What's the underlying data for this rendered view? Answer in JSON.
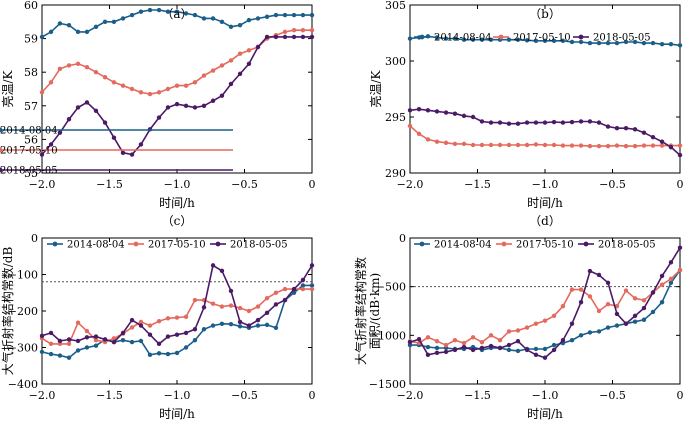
{
  "chart_data": [
    {
      "type": "line",
      "panel_label": "（a）",
      "xlabel": "时间/h",
      "ylabel": "亮温/K",
      "xlim": [
        -2.0,
        0
      ],
      "ylim": [
        55,
        60
      ],
      "x_ticks": [
        -2.0,
        -1.5,
        -1.0,
        -0.5,
        0
      ],
      "x_tick_labels": [
        "−2.0",
        "−1.5",
        "−1.0",
        "−0.5",
        "0"
      ],
      "y_ticks": [
        55,
        56,
        57,
        58,
        59,
        60
      ],
      "y_tick_labels": [
        "55",
        "56",
        "57",
        "58",
        "59",
        "60"
      ],
      "legend_position": "lower-right",
      "reference_line": null,
      "series": [
        {
          "name": "2014-08-04",
          "color": "#1a5e8a",
          "x": [
            -2.0,
            -1.933,
            -1.867,
            -1.8,
            -1.733,
            -1.667,
            -1.6,
            -1.533,
            -1.467,
            -1.4,
            -1.333,
            -1.267,
            -1.2,
            -1.133,
            -1.067,
            -1.0,
            -0.933,
            -0.867,
            -0.8,
            -0.733,
            -0.667,
            -0.6,
            -0.533,
            -0.467,
            -0.4,
            -0.333,
            -0.267,
            -0.2,
            -0.133,
            -0.067,
            0.0
          ],
          "y": [
            59.05,
            59.2,
            59.45,
            59.4,
            59.2,
            59.2,
            59.35,
            59.5,
            59.5,
            59.6,
            59.7,
            59.8,
            59.85,
            59.85,
            59.8,
            59.8,
            59.75,
            59.7,
            59.6,
            59.6,
            59.5,
            59.35,
            59.4,
            59.55,
            59.6,
            59.65,
            59.7,
            59.7,
            59.7,
            59.7,
            59.7
          ]
        },
        {
          "name": "2017-05-10",
          "color": "#e46a5e",
          "x": [
            -2.0,
            -1.933,
            -1.867,
            -1.8,
            -1.733,
            -1.667,
            -1.6,
            -1.533,
            -1.467,
            -1.4,
            -1.333,
            -1.267,
            -1.2,
            -1.133,
            -1.067,
            -1.0,
            -0.933,
            -0.867,
            -0.8,
            -0.733,
            -0.667,
            -0.6,
            -0.533,
            -0.467,
            -0.4,
            -0.333,
            -0.267,
            -0.2,
            -0.133,
            -0.067,
            0.0
          ],
          "y": [
            57.4,
            57.7,
            58.1,
            58.2,
            58.25,
            58.15,
            58.0,
            57.85,
            57.7,
            57.6,
            57.5,
            57.4,
            57.35,
            57.4,
            57.5,
            57.6,
            57.6,
            57.7,
            57.9,
            58.05,
            58.2,
            58.35,
            58.55,
            58.65,
            58.75,
            59.0,
            59.1,
            59.2,
            59.25,
            59.25,
            59.25
          ]
        },
        {
          "name": "2018-05-05",
          "color": "#4b1a66",
          "x": [
            -2.0,
            -1.933,
            -1.867,
            -1.8,
            -1.733,
            -1.667,
            -1.6,
            -1.533,
            -1.467,
            -1.4,
            -1.333,
            -1.267,
            -1.2,
            -1.133,
            -1.067,
            -1.0,
            -0.933,
            -0.867,
            -0.8,
            -0.733,
            -0.667,
            -0.6,
            -0.533,
            -0.467,
            -0.4,
            -0.333,
            -0.267,
            -0.2,
            -0.133,
            -0.067,
            0.0
          ],
          "y": [
            55.55,
            55.85,
            56.2,
            56.6,
            56.95,
            57.1,
            56.85,
            56.5,
            56.05,
            55.6,
            55.55,
            55.85,
            56.3,
            56.65,
            56.95,
            57.05,
            57.0,
            56.95,
            57.0,
            57.15,
            57.3,
            57.65,
            57.95,
            58.25,
            58.75,
            59.05,
            59.05,
            59.05,
            59.05,
            59.05,
            59.05
          ]
        }
      ]
    },
    {
      "type": "line",
      "panel_label": "（b）",
      "xlabel": "时间/h",
      "ylabel": "亮温/K",
      "xlim": [
        -2.0,
        0
      ],
      "ylim": [
        290,
        305
      ],
      "x_ticks": [
        -2.0,
        -1.5,
        -1.0,
        -0.5,
        0
      ],
      "x_tick_labels": [
        "−2.0",
        "−1.5",
        "−1.0",
        "−0.5",
        "0"
      ],
      "y_ticks": [
        290,
        295,
        300,
        305
      ],
      "y_tick_labels": [
        "290",
        "295",
        "300",
        "305"
      ],
      "legend_position": "top",
      "reference_line": null,
      "series": [
        {
          "name": "2014-08-04",
          "color": "#1a5e8a",
          "x": [
            -2.0,
            -1.933,
            -1.867,
            -1.8,
            -1.733,
            -1.667,
            -1.6,
            -1.533,
            -1.467,
            -1.4,
            -1.333,
            -1.267,
            -1.2,
            -1.133,
            -1.067,
            -1.0,
            -0.933,
            -0.867,
            -0.8,
            -0.733,
            -0.667,
            -0.6,
            -0.533,
            -0.467,
            -0.4,
            -0.333,
            -0.267,
            -0.2,
            -0.133,
            -0.067,
            0.0
          ],
          "y": [
            302.0,
            302.1,
            302.2,
            302.1,
            302.0,
            302.0,
            301.9,
            301.9,
            301.9,
            301.9,
            301.9,
            301.9,
            301.9,
            301.85,
            301.8,
            301.8,
            301.8,
            301.8,
            301.7,
            301.7,
            301.6,
            301.6,
            301.6,
            301.6,
            301.7,
            301.7,
            301.6,
            301.6,
            301.5,
            301.5,
            301.4
          ]
        },
        {
          "name": "2017-05-10",
          "color": "#e46a5e",
          "x": [
            -2.0,
            -1.933,
            -1.867,
            -1.8,
            -1.733,
            -1.667,
            -1.6,
            -1.533,
            -1.467,
            -1.4,
            -1.333,
            -1.267,
            -1.2,
            -1.133,
            -1.067,
            -1.0,
            -0.933,
            -0.867,
            -0.8,
            -0.733,
            -0.667,
            -0.6,
            -0.533,
            -0.467,
            -0.4,
            -0.333,
            -0.267,
            -0.2,
            -0.133,
            -0.067,
            0.0
          ],
          "y": [
            294.2,
            293.5,
            293.0,
            292.8,
            292.7,
            292.6,
            292.6,
            292.5,
            292.5,
            292.5,
            292.5,
            292.5,
            292.5,
            292.5,
            292.55,
            292.5,
            292.5,
            292.45,
            292.45,
            292.45,
            292.4,
            292.4,
            292.4,
            292.45,
            292.4,
            292.4,
            292.45,
            292.45,
            292.45,
            292.45,
            292.45
          ]
        },
        {
          "name": "2018-05-05",
          "color": "#4b1a66",
          "x": [
            -2.0,
            -1.933,
            -1.867,
            -1.8,
            -1.733,
            -1.667,
            -1.6,
            -1.533,
            -1.467,
            -1.4,
            -1.333,
            -1.267,
            -1.2,
            -1.133,
            -1.067,
            -1.0,
            -0.933,
            -0.867,
            -0.8,
            -0.733,
            -0.667,
            -0.6,
            -0.533,
            -0.467,
            -0.4,
            -0.333,
            -0.267,
            -0.2,
            -0.133,
            -0.067,
            0.0
          ],
          "y": [
            295.6,
            295.7,
            295.6,
            295.5,
            295.4,
            295.3,
            295.1,
            295.0,
            294.6,
            294.5,
            294.5,
            294.4,
            294.4,
            294.5,
            294.5,
            294.5,
            294.55,
            294.5,
            294.55,
            294.6,
            294.6,
            294.5,
            294.15,
            294.0,
            294.0,
            293.9,
            293.6,
            293.2,
            292.8,
            292.3,
            291.6
          ]
        }
      ]
    },
    {
      "type": "line",
      "panel_label": "（c）",
      "xlabel": "时间/h",
      "ylabel": "大气折射率结构常数/dB",
      "xlim": [
        -2.0,
        0
      ],
      "ylim": [
        -400,
        0
      ],
      "x_ticks": [
        -2.0,
        -1.5,
        -1.0,
        -0.5,
        0
      ],
      "x_tick_labels": [
        "−2.0",
        "−1.5",
        "−1.0",
        "−0.5",
        "0"
      ],
      "y_ticks": [
        -400,
        -300,
        -200,
        -100,
        0
      ],
      "y_tick_labels": [
        "−400",
        "−300",
        "−200",
        "−100",
        "0"
      ],
      "legend_position": "top",
      "reference_line": -120,
      "series": [
        {
          "name": "2014-08-04",
          "color": "#1a5e8a",
          "x": [
            -2.0,
            -1.933,
            -1.867,
            -1.8,
            -1.733,
            -1.667,
            -1.6,
            -1.533,
            -1.467,
            -1.4,
            -1.333,
            -1.267,
            -1.2,
            -1.133,
            -1.067,
            -1.0,
            -0.933,
            -0.867,
            -0.8,
            -0.733,
            -0.667,
            -0.6,
            -0.533,
            -0.467,
            -0.4,
            -0.333,
            -0.267,
            -0.2,
            -0.133,
            -0.067,
            0.0
          ],
          "y": [
            -312,
            -318,
            -322,
            -328,
            -308,
            -300,
            -295,
            -278,
            -285,
            -280,
            -285,
            -282,
            -320,
            -316,
            -318,
            -315,
            -300,
            -280,
            -250,
            -240,
            -235,
            -236,
            -242,
            -246,
            -240,
            -238,
            -246,
            -170,
            -150,
            -130,
            -130
          ]
        },
        {
          "name": "2017-05-10",
          "color": "#e46a5e",
          "x": [
            -2.0,
            -1.933,
            -1.867,
            -1.8,
            -1.733,
            -1.667,
            -1.6,
            -1.533,
            -1.467,
            -1.4,
            -1.333,
            -1.267,
            -1.2,
            -1.133,
            -1.067,
            -1.0,
            -0.933,
            -0.867,
            -0.8,
            -0.733,
            -0.667,
            -0.6,
            -0.533,
            -0.467,
            -0.4,
            -0.333,
            -0.267,
            -0.2,
            -0.133,
            -0.067,
            0.0
          ],
          "y": [
            -275,
            -290,
            -290,
            -290,
            -232,
            -255,
            -280,
            -285,
            -275,
            -262,
            -245,
            -230,
            -240,
            -228,
            -220,
            -218,
            -216,
            -170,
            -170,
            -180,
            -188,
            -185,
            -192,
            -200,
            -188,
            -165,
            -150,
            -140,
            -140,
            -140,
            -140
          ]
        },
        {
          "name": "2018-05-05",
          "color": "#4b1a66",
          "x": [
            -2.0,
            -1.933,
            -1.867,
            -1.8,
            -1.733,
            -1.667,
            -1.6,
            -1.533,
            -1.467,
            -1.4,
            -1.333,
            -1.267,
            -1.2,
            -1.133,
            -1.067,
            -1.0,
            -0.933,
            -0.867,
            -0.8,
            -0.733,
            -0.667,
            -0.6,
            -0.533,
            -0.467,
            -0.4,
            -0.333,
            -0.267,
            -0.2,
            -0.133,
            -0.067,
            0.0
          ],
          "y": [
            -268,
            -260,
            -282,
            -278,
            -282,
            -272,
            -270,
            -278,
            -285,
            -260,
            -225,
            -240,
            -265,
            -290,
            -270,
            -265,
            -260,
            -250,
            -190,
            -75,
            -90,
            -145,
            -230,
            -240,
            -225,
            -205,
            -182,
            -170,
            -140,
            -115,
            -75
          ]
        }
      ]
    },
    {
      "type": "line",
      "panel_label": "（d）",
      "xlabel": "时间/h",
      "ylabel_line1": "大气折射率结构常数",
      "ylabel_line2": "面积/(dB·km)",
      "xlim": [
        -2.0,
        0
      ],
      "ylim": [
        -1500,
        0
      ],
      "x_ticks": [
        -2.0,
        -1.5,
        -1.0,
        -0.5,
        0
      ],
      "x_tick_labels": [
        "−2.0",
        "−1.5",
        "−1.0",
        "−0.5",
        "0"
      ],
      "y_ticks": [
        -1500,
        -1000,
        -500,
        0
      ],
      "y_tick_labels": [
        "−1500",
        "−1000",
        "−500",
        "0"
      ],
      "legend_position": "top",
      "reference_line": -500,
      "series": [
        {
          "name": "2014-08-04",
          "color": "#1a5e8a",
          "x": [
            -2.0,
            -1.933,
            -1.867,
            -1.8,
            -1.733,
            -1.667,
            -1.6,
            -1.533,
            -1.467,
            -1.4,
            -1.333,
            -1.267,
            -1.2,
            -1.133,
            -1.067,
            -1.0,
            -0.933,
            -0.867,
            -0.8,
            -0.733,
            -0.667,
            -0.6,
            -0.533,
            -0.467,
            -0.4,
            -0.333,
            -0.267,
            -0.2,
            -0.133,
            -0.067,
            0.0
          ],
          "y": [
            -1100,
            -1100,
            -1120,
            -1130,
            -1130,
            -1140,
            -1140,
            -1120,
            -1150,
            -1130,
            -1130,
            -1150,
            -1160,
            -1140,
            -1140,
            -1140,
            -1100,
            -1080,
            -1050,
            -1000,
            -970,
            -960,
            -920,
            -900,
            -880,
            -860,
            -840,
            -760,
            -660,
            -460,
            -330
          ]
        },
        {
          "name": "2017-05-10",
          "color": "#e46a5e",
          "x": [
            -2.0,
            -1.933,
            -1.867,
            -1.8,
            -1.733,
            -1.667,
            -1.6,
            -1.533,
            -1.467,
            -1.4,
            -1.333,
            -1.267,
            -1.2,
            -1.133,
            -1.067,
            -1.0,
            -0.933,
            -0.867,
            -0.8,
            -0.733,
            -0.667,
            -0.6,
            -0.533,
            -0.467,
            -0.4,
            -0.333,
            -0.267,
            -0.2,
            -0.133,
            -0.067,
            0.0
          ],
          "y": [
            -1060,
            -1080,
            -1020,
            -1060,
            -1100,
            -1050,
            -1080,
            -1020,
            -1070,
            -1000,
            -1050,
            -960,
            -950,
            -920,
            -880,
            -850,
            -800,
            -700,
            -530,
            -530,
            -600,
            -750,
            -680,
            -700,
            -540,
            -620,
            -640,
            -560,
            -480,
            -420,
            -330
          ]
        },
        {
          "name": "2018-05-05",
          "color": "#4b1a66",
          "x": [
            -2.0,
            -1.933,
            -1.867,
            -1.8,
            -1.733,
            -1.667,
            -1.6,
            -1.533,
            -1.467,
            -1.4,
            -1.333,
            -1.267,
            -1.2,
            -1.133,
            -1.067,
            -1.0,
            -0.933,
            -0.867,
            -0.8,
            -0.733,
            -0.667,
            -0.6,
            -0.533,
            -0.467,
            -0.4,
            -0.333,
            -0.267,
            -0.2,
            -0.133,
            -0.067,
            0.0
          ],
          "y": [
            -1070,
            -1040,
            -1200,
            -1180,
            -1170,
            -1150,
            -1120,
            -1150,
            -1130,
            -1110,
            -1130,
            -1100,
            -1060,
            -1150,
            -1200,
            -1230,
            -1150,
            -1050,
            -880,
            -660,
            -340,
            -380,
            -460,
            -780,
            -880,
            -800,
            -720,
            -560,
            -390,
            -250,
            -100
          ]
        }
      ]
    }
  ]
}
